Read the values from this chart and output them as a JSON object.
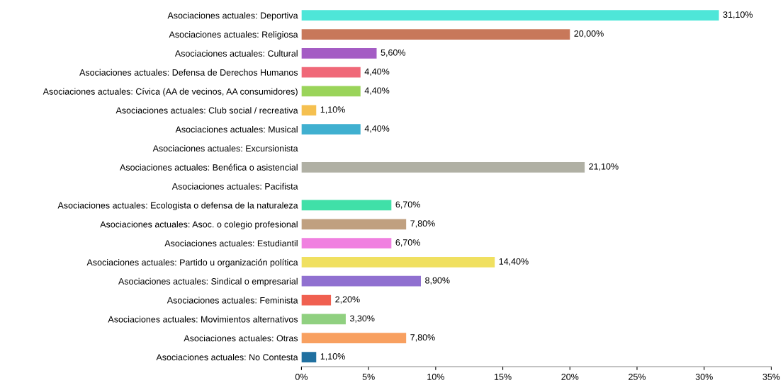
{
  "chart_data": {
    "type": "bar",
    "orientation": "horizontal",
    "categories": [
      "Asociaciones actuales: Deportiva",
      "Asociaciones actuales: Religiosa",
      "Asociaciones actuales: Cultural",
      "Asociaciones actuales: Defensa de Derechos Humanos",
      "Asociaciones actuales: Cívica (AA de vecinos, AA consumidores)",
      "Asociaciones actuales: Club social / recreativa",
      "Asociaciones actuales: Musical",
      "Asociaciones actuales: Excursionista",
      "Asociaciones actuales: Benéfica o asistencial",
      "Asociaciones actuales: Pacifista",
      "Asociaciones actuales: Ecologista o defensa de la naturaleza",
      "Asociaciones actuales: Asoc. o colegio profesional",
      "Asociaciones actuales: Estudiantil",
      "Asociaciones actuales: Partido u organización política",
      "Asociaciones actuales: Sindical o empresarial",
      "Asociaciones actuales: Feminista",
      "Asociaciones actuales: Movimientos alternativos",
      "Asociaciones actuales: Otras",
      "Asociaciones actuales: No Contesta"
    ],
    "values": [
      31.1,
      20.0,
      5.6,
      4.4,
      4.4,
      1.1,
      4.4,
      null,
      21.1,
      null,
      6.7,
      7.8,
      6.7,
      14.4,
      8.9,
      2.2,
      3.3,
      7.8,
      1.1
    ],
    "value_labels": [
      "31,10%",
      "20,00%",
      "5,60%",
      "4,40%",
      "4,40%",
      "1,10%",
      "4,40%",
      null,
      "21,10%",
      null,
      "6,70%",
      "7,80%",
      "6,70%",
      "14,40%",
      "8,90%",
      "2,20%",
      "3,30%",
      "7,80%",
      "1,10%"
    ],
    "colors": [
      "#4ee6d8",
      "#c8785a",
      "#a45cc4",
      "#f06878",
      "#9ad45a",
      "#f5c050",
      "#40b0d0",
      "#999999",
      "#b0b0a4",
      "#999999",
      "#40e0a8",
      "#c0a080",
      "#f080e0",
      "#f0e060",
      "#9070d0",
      "#f06050",
      "#90d080",
      "#f8a060",
      "#2070a0"
    ],
    "xlim": [
      0,
      35
    ],
    "xticks": [
      {
        "value": 0,
        "label": "0%"
      },
      {
        "value": 5,
        "label": "5%"
      },
      {
        "value": 10,
        "label": "10%"
      },
      {
        "value": 15,
        "label": "15%"
      },
      {
        "value": 20,
        "label": "20%"
      },
      {
        "value": 25,
        "label": "25%"
      },
      {
        "value": 30,
        "label": "30%"
      },
      {
        "value": 35,
        "label": "35%"
      }
    ],
    "grid": false
  }
}
